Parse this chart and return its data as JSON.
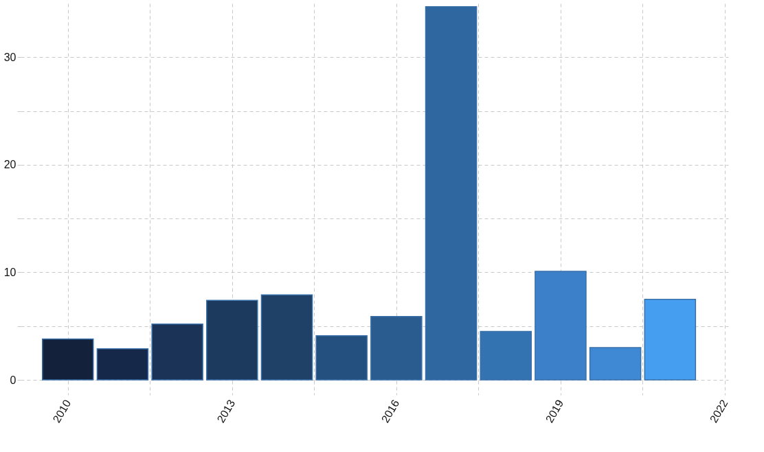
{
  "chart_data": {
    "type": "bar",
    "x": [
      2010,
      2011,
      2012,
      2013,
      2014,
      2015,
      2016,
      2017,
      2018,
      2019,
      2020,
      2021
    ],
    "values": [
      3.8,
      2.9,
      5.2,
      7.4,
      7.9,
      4.1,
      5.9,
      34.7,
      4.5,
      10.1,
      3.0,
      7.5
    ],
    "colors": [
      "#13213a",
      "#15284a",
      "#1a3356",
      "#1c3a5e",
      "#1f4168",
      "#24507f",
      "#2a5c90",
      "#2f67a0",
      "#3473b1",
      "#3b80c8",
      "#3e88d4",
      "#469ef0"
    ],
    "xlim": [
      2009.2,
      2022
    ],
    "ylim": [
      -1.4,
      35
    ],
    "xticks": [
      2010,
      {
        "value": 2011.5,
        "label": null
      },
      2013,
      {
        "value": 2014.5,
        "label": null
      },
      2016,
      {
        "value": 2017.5,
        "label": null
      },
      2019,
      {
        "value": 2020.5,
        "label": null
      },
      2022
    ],
    "yticks": [
      0,
      {
        "value": 5,
        "label": null
      },
      10,
      {
        "value": 15,
        "label": null
      },
      20,
      {
        "value": 25,
        "label": null
      },
      30
    ],
    "grid": true
  }
}
